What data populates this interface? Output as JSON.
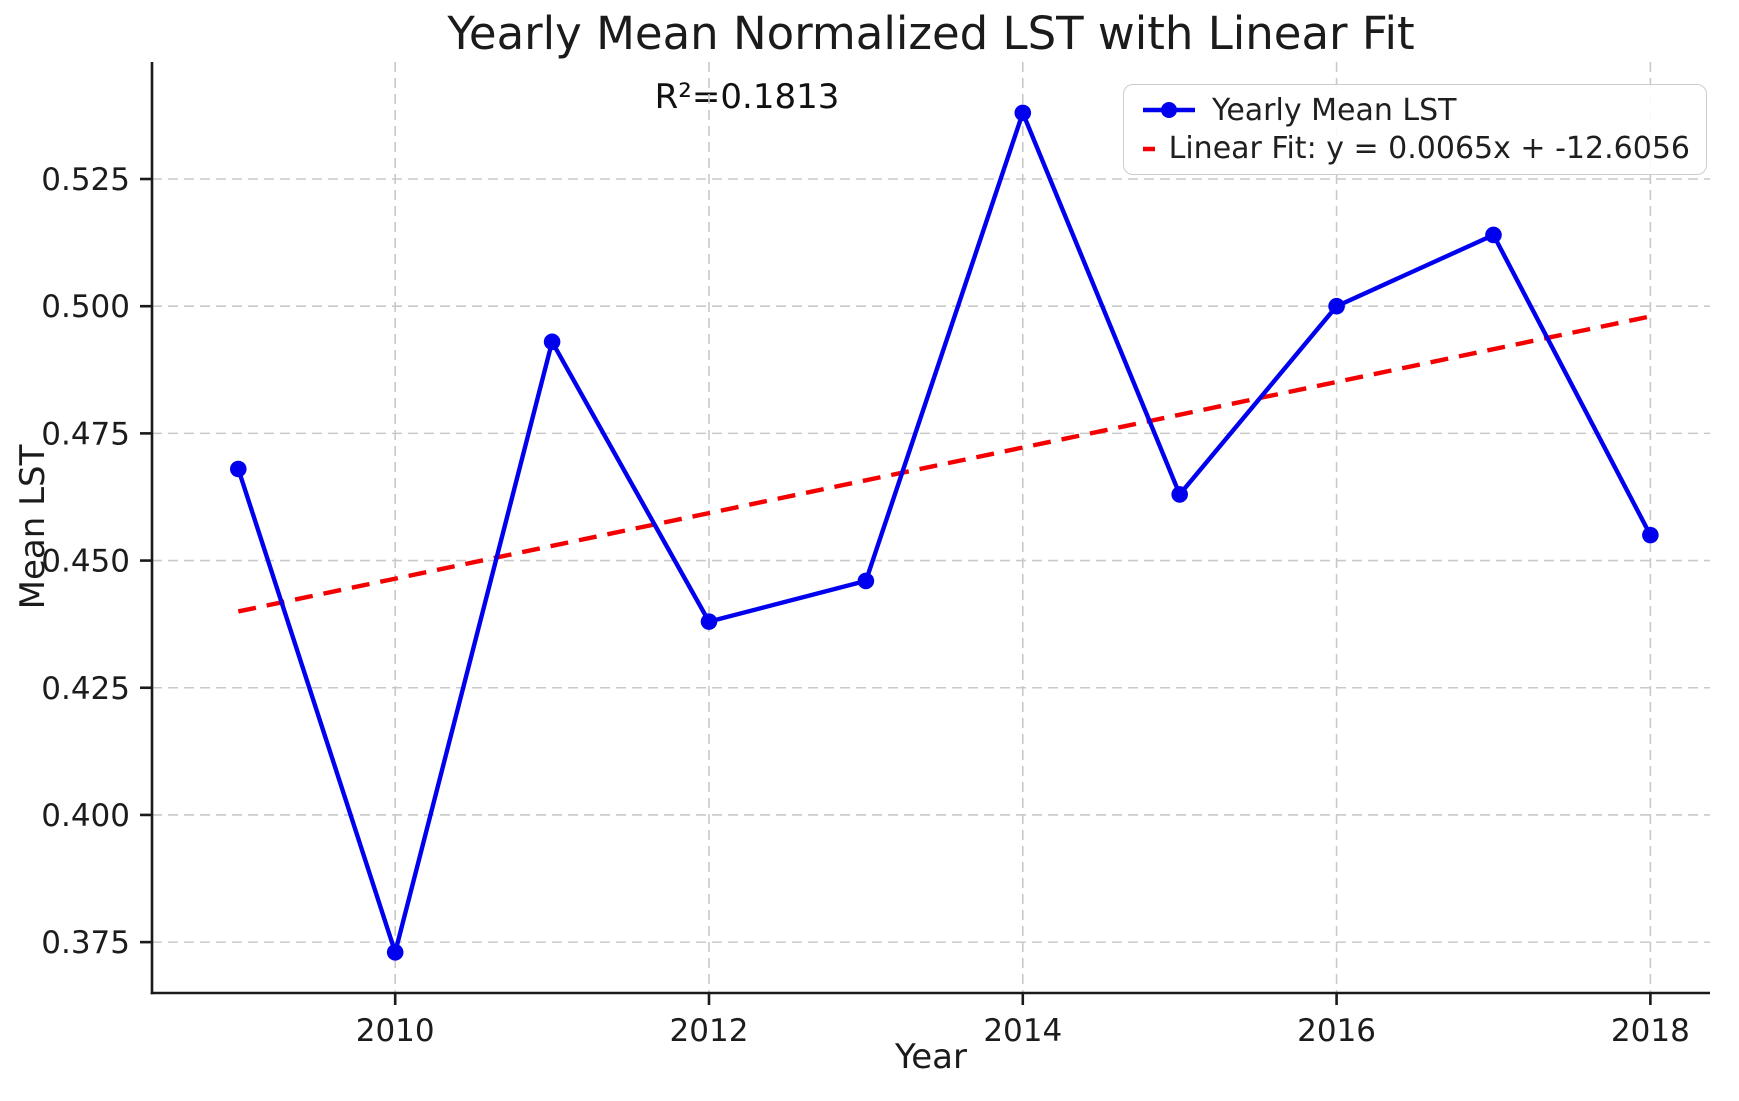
{
  "chart_data": {
    "type": "line",
    "title": "Yearly Mean Normalized LST with Linear Fit",
    "xlabel": "Year",
    "ylabel": "Mean LST",
    "annotation": "R²=0.1813",
    "r_squared": 0.1813,
    "x": [
      2009,
      2010,
      2011,
      2012,
      2013,
      2014,
      2015,
      2016,
      2017,
      2018
    ],
    "series": [
      {
        "name": "Yearly Mean LST",
        "style": "solid-line-with-circle-markers",
        "color": "#0000ee",
        "values": [
          0.468,
          0.373,
          0.493,
          0.438,
          0.446,
          0.538,
          0.463,
          0.5,
          0.514,
          0.455
        ]
      },
      {
        "name": "Linear Fit: y = 0.0065x + -12.6056",
        "style": "dashed-line",
        "color": "#f50000",
        "equation_slope": 0.0065,
        "equation_intercept": -12.6056,
        "endpoint_x": [
          2009,
          2018
        ],
        "endpoint_y": [
          0.44,
          0.498
        ]
      }
    ],
    "xlim": [
      2008.45,
      2018.38
    ],
    "ylim": [
      0.365,
      0.548
    ],
    "xticks": [
      2010,
      2012,
      2014,
      2016,
      2018
    ],
    "yticks": [
      0.375,
      0.4,
      0.425,
      0.45,
      0.475,
      0.5,
      0.525
    ],
    "ytick_decimals": 3,
    "grid": true,
    "legend_position": "upper right"
  }
}
